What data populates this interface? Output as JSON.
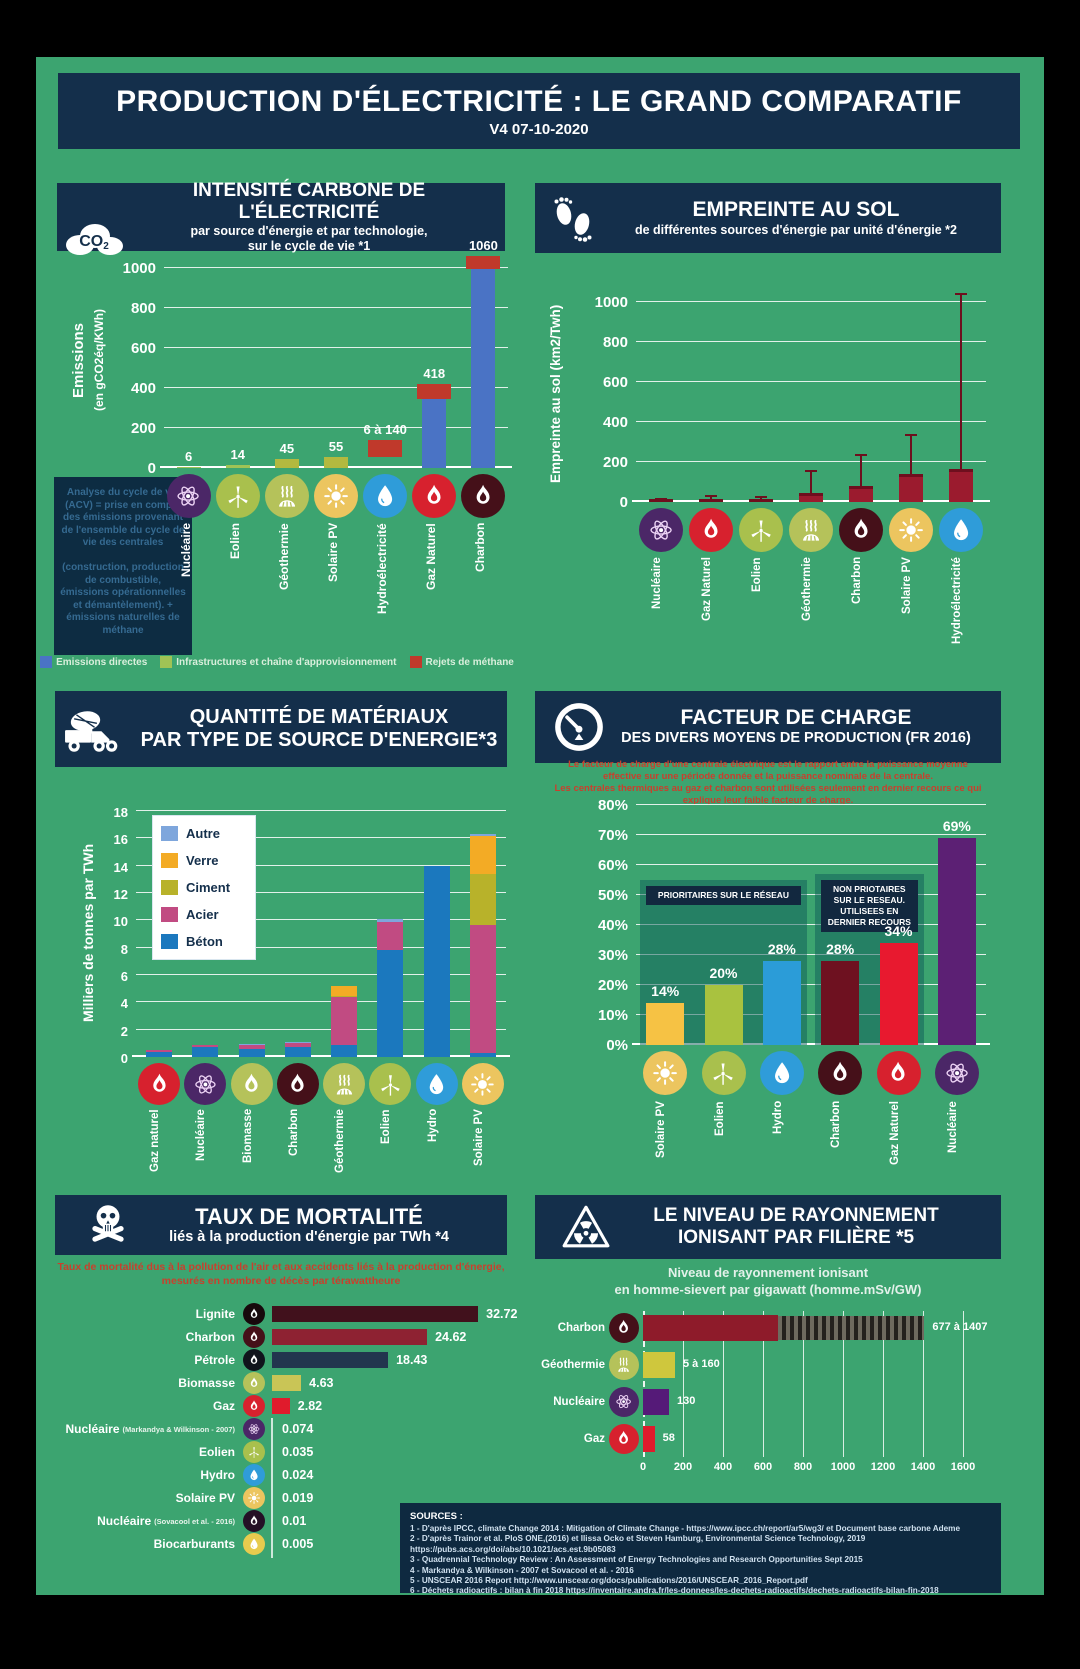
{
  "poster": {
    "title": "PRODUCTION D'ÉLECTRICITÉ : LE GRAND COMPARATIF",
    "version": "V4 07-10-2020"
  },
  "panels": {
    "carbon": {
      "title": "INTENSITÉ CARBONE DE L'ÉLECTRICITÉ",
      "subtitle1": "par source d'énergie et par technologie,",
      "subtitle2": "sur le cycle de vie *1",
      "note": "Analyse du cycle de vie (ACV) = prise en compte des émissions provenant de l'ensemble du cycle de vie des centrales\n\n(construction, production de combustible, émissions opérationnelles et démantèlement). + émissions naturelles de méthane"
    },
    "land": {
      "title": "EMPREINTE AU SOL",
      "subtitle": "de différentes sources d'énergie par unité d'énergie *2"
    },
    "materials": {
      "title": "QUANTITÉ DE MATÉRIAUX",
      "title2": "PAR TYPE DE SOURCE D'ENERGIE*3"
    },
    "load": {
      "title": "FACTEUR DE CHARGE",
      "subtitle": "DES DIVERS MOYENS DE PRODUCTION (FR 2016)",
      "description": "Le facteur de charge d'une centrale électrique est le rapport entre la puissance moyenne\neffective sur une période donnée et la puissance nominale de la centrale.\nLes centrales thermiques au gaz et charbon sont utilisées seulement en dernier recours ce qui\nexplique leur faible facteur de charge."
    },
    "mortality": {
      "title": "TAUX DE MORTALITÉ",
      "subtitle": "liés à la production d'énergie par TWh *4",
      "description": "Taux de mortalité dus à la pollution de l'air et aux accidents liés à la production d'énergie,\nmesurés en nombre de décès par térawattheure"
    },
    "radiation": {
      "title": "LE NIVEAU DE RAYONNEMENT",
      "title2": "IONISANT PAR FILIÈRE *5",
      "description": "Niveau de rayonnement ionisant\nen homme-sievert par gigawatt (homme.mSv/GW)"
    }
  },
  "sources": {
    "heading": "SOURCES :",
    "lines": [
      "1 - D'après IPCC, climate Change 2014 : Mitigation of Climate Change - https://www.ipcc.ch/report/ar5/wg3/  et Document base carbone Ademe",
      "2 - D'après Trainor et al. PloS ONE,(2016) et Ilissa Ocko et Steven Hamburg, Environmental Science Technology, 2019",
      "https://pubs.acs.org/doi/abs/10.1021/acs.est.9b05083",
      "3 - Quadrennial Technology Review :  An Assessment of Energy Technologies and Research Opportunities Sept 2015",
      "4 - Markandya & Wilkinson - 2007 et Sovacool et al. - 2016",
      "5 - UNSCEAR 2016 Report http://www.unscear.org/docs/publications/2016/UNSCEAR_2016_Report.pdf",
      "6 - Déchets radioactifs : bilan à fin 2018  https://inventaire.andra.fr/les-donnees/les-dechets-radioactifs/dechets-radioactifs-bilan-fin-2018"
    ]
  },
  "chart_data": [
    {
      "id": "carbon_intensity",
      "type": "bar",
      "title": "INTENSITÉ CARBONE DE L'ÉLECTRICITÉ",
      "ylabel": "Emissions (en gCO2éq/KWh)",
      "ylabel_lines": [
        "Emissions",
        "(en gCO2éq/KWh)"
      ],
      "yticks": [
        0,
        200,
        400,
        600,
        800,
        1000
      ],
      "ylim": [
        0,
        1075
      ],
      "categories": [
        {
          "label": "Nucléaire",
          "icon": "atom",
          "bg": "#4b2767"
        },
        {
          "label": "Eolien",
          "icon": "wind-turbine",
          "bg": "#a9c04d"
        },
        {
          "label": "Géothermie",
          "icon": "geothermal",
          "bg": "#b5c25a"
        },
        {
          "label": "Solaire PV",
          "icon": "sun",
          "bg": "#ecc55f"
        },
        {
          "label": "Hydroélectricité",
          "icon": "droplet",
          "bg": "#2f9cd9"
        },
        {
          "label": "Gaz Naturel",
          "icon": "flame",
          "bg": "#d7212e"
        },
        {
          "label": "Charbon",
          "icon": "flame",
          "bg": "#451019"
        }
      ],
      "values": [
        6,
        14,
        45,
        55,
        [
          6,
          140
        ],
        418,
        1060
      ],
      "value_labels": [
        "6",
        "14",
        "45",
        "55",
        "6 à 140",
        "418",
        "1060"
      ],
      "bars": [
        [
          {
            "color": "#9fc355",
            "from": 0,
            "to": 6
          }
        ],
        [
          {
            "color": "#9fc355",
            "from": 0,
            "to": 14
          }
        ],
        [
          {
            "color": "#b3b93f",
            "from": 0,
            "to": 45
          }
        ],
        [
          {
            "color": "#b3b93f",
            "from": 0,
            "to": 55
          }
        ],
        [
          {
            "color": "#c0392b",
            "from": 55,
            "to": 140,
            "wide": true
          }
        ],
        [
          {
            "color": "#4a73c5",
            "from": 0,
            "to": 345
          },
          {
            "color": "#c0392b",
            "from": 345,
            "to": 418,
            "wide": true
          }
        ],
        [
          {
            "color": "#4a73c5",
            "from": 0,
            "to": 995
          },
          {
            "color": "#c0392b",
            "from": 995,
            "to": 1060,
            "wide": true
          }
        ]
      ],
      "legend": [
        {
          "label": "Emissions directes",
          "color": "#4a73c5"
        },
        {
          "label": "Infrastructures et chaîne d'approvisionnement",
          "color": "#9fc355"
        },
        {
          "label": "Rejets de méthane",
          "color": "#c0392b"
        }
      ]
    },
    {
      "id": "land_footprint",
      "type": "bar-range",
      "title": "EMPREINTE AU SOL",
      "ylabel": "Empreinte au sol (km2/Twh)",
      "ylabel_lines": [
        "Empreinte au sol (km2/Twh)"
      ],
      "yticks": [
        0,
        200,
        400,
        600,
        800,
        1000
      ],
      "ylim": [
        0,
        1060
      ],
      "bar_color": "#9b1b2e",
      "whisker_color": "#6e0f1e",
      "categories": [
        {
          "label": "Nucléaire",
          "icon": "atom",
          "bg": "#4b2767"
        },
        {
          "label": "Gaz Naturel",
          "icon": "flame",
          "bg": "#d7212e"
        },
        {
          "label": "Eolien",
          "icon": "wind-turbine",
          "bg": "#a9c04d"
        },
        {
          "label": "Géothermie",
          "icon": "geothermal",
          "bg": "#b5c25a"
        },
        {
          "label": "Charbon",
          "icon": "flame",
          "bg": "#451019"
        },
        {
          "label": "Solaire PV",
          "icon": "sun",
          "bg": "#ecc55f"
        },
        {
          "label": "Hydroélectricité",
          "icon": "droplet",
          "bg": "#2f9cd9"
        }
      ],
      "box_values": [
        3,
        12,
        9,
        45,
        80,
        140,
        165
      ],
      "whisker_values": [
        6,
        25,
        18,
        150,
        230,
        330,
        1035
      ]
    },
    {
      "id": "materials_per_twh",
      "type": "stacked-bar",
      "title": "QUANTITÉ DE MATÉRIAUX PAR TYPE DE SOURCE D'ENERGIE",
      "ylabel": "Milliers de tonnes par TWh",
      "ylabel_lines": [
        "Milliers de tonnes par TWh"
      ],
      "yticks": [
        0,
        2,
        4,
        6,
        8,
        10,
        12,
        14,
        16,
        18
      ],
      "ylim": [
        0,
        18.3
      ],
      "categories": [
        {
          "label": "Gaz naturel",
          "icon": "flame",
          "bg": "#d7212e"
        },
        {
          "label": "Nucléaire",
          "icon": "atom",
          "bg": "#4b2767"
        },
        {
          "label": "Biomasse",
          "icon": "flame",
          "bg": "#b5c25a"
        },
        {
          "label": "Charbon",
          "icon": "flame",
          "bg": "#451019"
        },
        {
          "label": "Géothermie",
          "icon": "geothermal",
          "bg": "#b5c25a"
        },
        {
          "label": "Eolien",
          "icon": "wind-turbine",
          "bg": "#a9c04d"
        },
        {
          "label": "Hydro",
          "icon": "droplet",
          "bg": "#2f9cd9"
        },
        {
          "label": "Solaire PV",
          "icon": "sun",
          "bg": "#ecc55f"
        }
      ],
      "series": [
        {
          "name": "Béton",
          "color": "#1b78be",
          "values": [
            0.35,
            0.7,
            0.6,
            0.75,
            0.9,
            7.8,
            14,
            0.3
          ]
        },
        {
          "name": "Acier",
          "color": "#c14b82",
          "values": [
            0.15,
            0.15,
            0.3,
            0.3,
            3.5,
            2.1,
            0,
            9.4
          ]
        },
        {
          "name": "Ciment",
          "color": "#b8b22a",
          "values": [
            0,
            0,
            0,
            0,
            0.1,
            0,
            0,
            3.7
          ]
        },
        {
          "name": "Verre",
          "color": "#f3ab25",
          "values": [
            0,
            0,
            0,
            0,
            0.7,
            0,
            0,
            2.8
          ]
        },
        {
          "name": "Autre",
          "color": "#7ea6dc",
          "values": [
            0,
            0,
            0.05,
            0.05,
            0,
            0.2,
            0,
            0.1
          ]
        }
      ],
      "legend_order": [
        "Autre",
        "Verre",
        "Ciment",
        "Acier",
        "Béton"
      ]
    },
    {
      "id": "load_factor",
      "type": "bar",
      "title": "FACTEUR DE CHARGE DES DIVERS MOYENS DE PRODUCTION (FR 2016)",
      "yticks": [
        0,
        10,
        20,
        30,
        40,
        50,
        60,
        70,
        80
      ],
      "ytick_suffix": "%",
      "ylim": [
        0,
        80
      ],
      "categories": [
        {
          "label": "Solaire PV",
          "icon": "sun",
          "bg": "#ecc55f"
        },
        {
          "label": "Eolien",
          "icon": "wind-turbine",
          "bg": "#a9c04d"
        },
        {
          "label": "Hydro",
          "icon": "droplet",
          "bg": "#2f9cd9"
        },
        {
          "label": "Charbon",
          "icon": "flame",
          "bg": "#451019"
        },
        {
          "label": "Gaz Naturel",
          "icon": "flame",
          "bg": "#d7212e"
        },
        {
          "label": "Nucléaire",
          "icon": "atom",
          "bg": "#4b2767"
        }
      ],
      "values": [
        14,
        20,
        28,
        28,
        34,
        69
      ],
      "value_labels": [
        "14%",
        "20%",
        "28%",
        "28%",
        "34%",
        "69%"
      ],
      "colors": [
        "#f6c244",
        "#a9c23f",
        "#2b9cd8",
        "#6e1120",
        "#e8192f",
        "#5c2074"
      ],
      "group_boxes": [
        {
          "label": "PRIORITAIRES SUR LE RÉSEAU",
          "from": 0,
          "to": 2,
          "top": 55
        },
        {
          "label": "NON PRIOTAIRES SUR LE RESEAU. UTILISEES EN DERNIER RECOURS",
          "from": 3,
          "to": 4,
          "top": 57
        }
      ]
    },
    {
      "id": "mortality_rate",
      "type": "hbar",
      "title": "TAUX DE MORTALITÉ liés à la production d'énergie par TWh",
      "rows": [
        {
          "label": "Lignite",
          "note": "",
          "icon": "flame",
          "bg": "#17090c",
          "value": 32.72,
          "value_label": "32.72",
          "color": "#41111c"
        },
        {
          "label": "Charbon",
          "note": "",
          "icon": "flame",
          "bg": "#451019",
          "value": 24.62,
          "value_label": "24.62",
          "color": "#8e2232"
        },
        {
          "label": "Pétrole",
          "note": "",
          "icon": "flame",
          "bg": "#10141c",
          "value": 18.43,
          "value_label": "18.43",
          "color": "#22364e"
        },
        {
          "label": "Biomasse",
          "note": "",
          "icon": "flame",
          "bg": "#b5c25a",
          "value": 4.63,
          "value_label": "4.63",
          "color": "#c9c556"
        },
        {
          "label": "Gaz",
          "note": "",
          "icon": "flame",
          "bg": "#d7212e",
          "value": 2.82,
          "value_label": "2.82",
          "color": "#e01b2c"
        },
        {
          "label": "Nucléaire",
          "note": "(Markandya & Wilkinson - 2007)",
          "icon": "atom",
          "bg": "#4b2767",
          "value": 0.074,
          "value_label": "0.074",
          "color": "#4b2767"
        },
        {
          "label": "Eolien",
          "note": "",
          "icon": "wind-turbine",
          "bg": "#a9c04d",
          "value": 0.035,
          "value_label": "0.035",
          "color": "#a9c04d"
        },
        {
          "label": "Hydro",
          "note": "",
          "icon": "droplet",
          "bg": "#2f9cd9",
          "value": 0.024,
          "value_label": "0.024",
          "color": "#2f9cd9"
        },
        {
          "label": "Solaire PV",
          "note": "",
          "icon": "sun",
          "bg": "#ecc55f",
          "value": 0.019,
          "value_label": "0.019",
          "color": "#ecc55f"
        },
        {
          "label": "Nucléaire",
          "note": "(Sovacool et al. - 2016)",
          "icon": "flame",
          "bg": "#241026",
          "value": 0.01,
          "value_label": "0.01",
          "color": "#241026"
        },
        {
          "label": "Biocarburants",
          "note": "",
          "icon": "droplet",
          "bg": "#e7cb4e",
          "value": 0.005,
          "value_label": "0.005",
          "color": "#e7cb4e"
        }
      ]
    },
    {
      "id": "ionizing_radiation",
      "type": "hbar-range",
      "title": "LE NIVEAU DE RAYONNEMENT IONISANT PAR FILIÈRE",
      "xlabel": "homme.mSv/GW",
      "xticks": [
        0,
        200,
        400,
        600,
        800,
        1000,
        1200,
        1400,
        1600
      ],
      "rows": [
        {
          "label": "Charbon",
          "icon": "flame",
          "bg": "#451019",
          "value": 677,
          "value_max": 1407,
          "value_label": "677 à 1407",
          "color": "#8e1b2a",
          "hatched": true
        },
        {
          "label": "Géothermie",
          "icon": "geothermal",
          "bg": "#b5c25a",
          "value": 160,
          "value_label": "5 à 160",
          "color": "#cfc73d"
        },
        {
          "label": "Nucléaire",
          "icon": "atom",
          "bg": "#4b2767",
          "value": 130,
          "value_label": "130",
          "color": "#551a78"
        },
        {
          "label": "Gaz",
          "icon": "flame",
          "bg": "#d7212e",
          "value": 58,
          "value_label": "58",
          "color": "#e01b2c"
        }
      ]
    }
  ]
}
